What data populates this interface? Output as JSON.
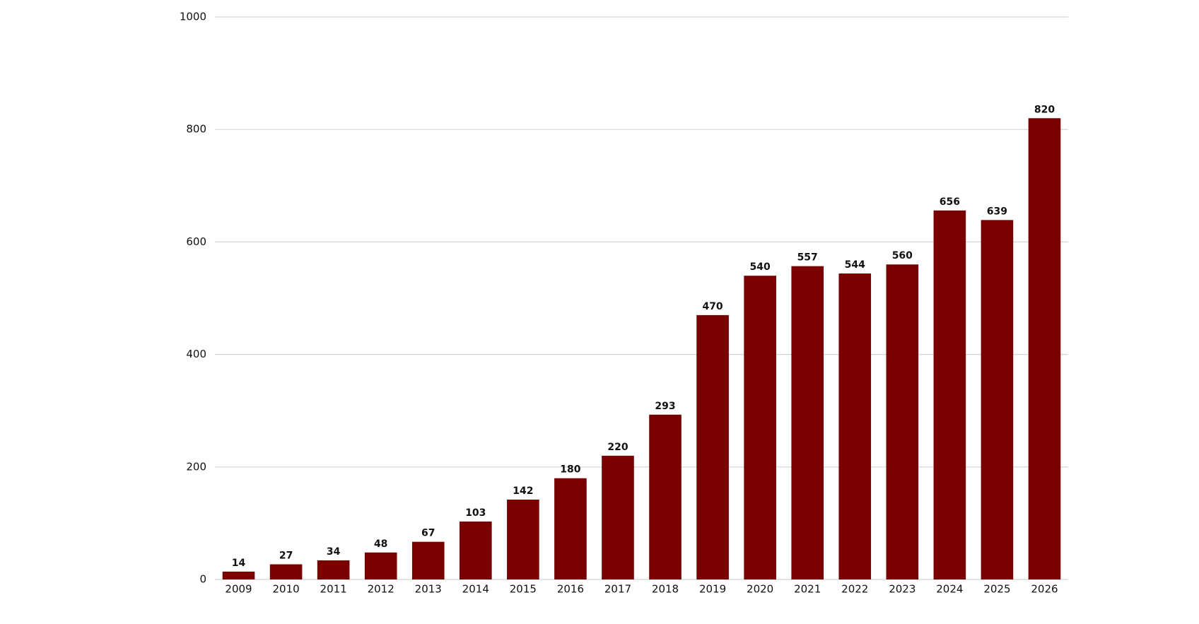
{
  "chart_data": {
    "type": "bar",
    "categories": [
      "2009",
      "2010",
      "2011",
      "2012",
      "2013",
      "2014",
      "2015",
      "2016",
      "2017",
      "2018",
      "2019",
      "2020",
      "2021",
      "2022",
      "2023",
      "2024",
      "2025",
      "2026"
    ],
    "values": [
      14,
      27,
      34,
      48,
      67,
      103,
      142,
      180,
      220,
      293,
      470,
      540,
      557,
      544,
      560,
      656,
      639,
      820
    ],
    "color": "#780000",
    "ylim": [
      0,
      1000
    ],
    "yticks": [
      0,
      200,
      400,
      600,
      800,
      1000
    ],
    "grid": true
  }
}
